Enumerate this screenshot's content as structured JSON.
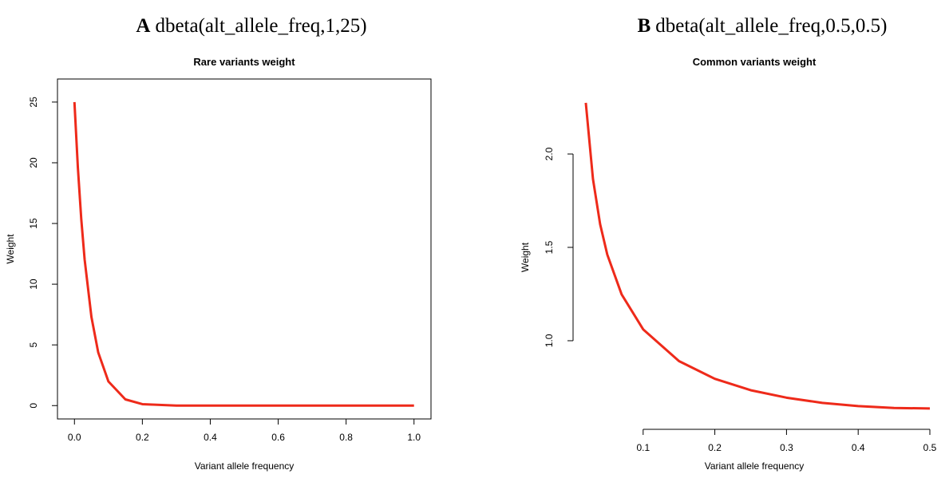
{
  "chart_data": [
    {
      "type": "line",
      "panel_label": "A",
      "heading": "dbeta(alt_allele_freq,1,25)",
      "title": "Rare variants weight",
      "xlabel": "Variant allele frequency",
      "ylabel": "Weight",
      "box": true,
      "xlim": [
        -0.05,
        1.05
      ],
      "ylim": [
        -1.1,
        26.9
      ],
      "xticks": [
        {
          "value": 0,
          "label": "0.0"
        },
        0.2,
        0.4,
        0.6,
        0.8,
        {
          "value": 1,
          "label": "1.0"
        }
      ],
      "yticks": [
        0,
        5,
        10,
        15,
        20,
        25
      ],
      "series": [
        {
          "color": "#ee2a1a",
          "x": [
            0,
            0.01,
            0.02,
            0.03,
            0.05,
            0.07,
            0.1,
            0.15,
            0.2,
            0.3,
            0.4,
            0.6,
            0.8,
            1.0
          ],
          "values": [
            25,
            19.64,
            15.39,
            12.03,
            7.3,
            4.38,
            1.99,
            0.51,
            0.12,
            0.0,
            0.0,
            0.0,
            0.0,
            0.0
          ]
        }
      ]
    },
    {
      "type": "line",
      "panel_label": "B",
      "heading": "dbeta(alt_allele_freq,0.5,0.5)",
      "title": "Common variants weight",
      "xlabel": "Variant allele frequency",
      "ylabel": "Weight",
      "box": false,
      "xlim": [
        0,
        0.51
      ],
      "ylim": [
        0.581,
        2.312
      ],
      "xticks": [
        0.1,
        0.2,
        0.3,
        0.4,
        0.5
      ],
      "yticks": [
        {
          "value": 1,
          "label": "1.0"
        },
        1.5,
        {
          "value": 2,
          "label": "2.0"
        }
      ],
      "series": [
        {
          "color": "#ee2a1a",
          "x": [
            0.02,
            0.03,
            0.04,
            0.05,
            0.07,
            0.1,
            0.15,
            0.2,
            0.25,
            0.3,
            0.35,
            0.4,
            0.45,
            0.5
          ],
          "values": [
            2.274,
            1.866,
            1.624,
            1.461,
            1.248,
            1.061,
            0.891,
            0.796,
            0.735,
            0.695,
            0.667,
            0.65,
            0.64,
            0.637
          ]
        }
      ]
    }
  ]
}
